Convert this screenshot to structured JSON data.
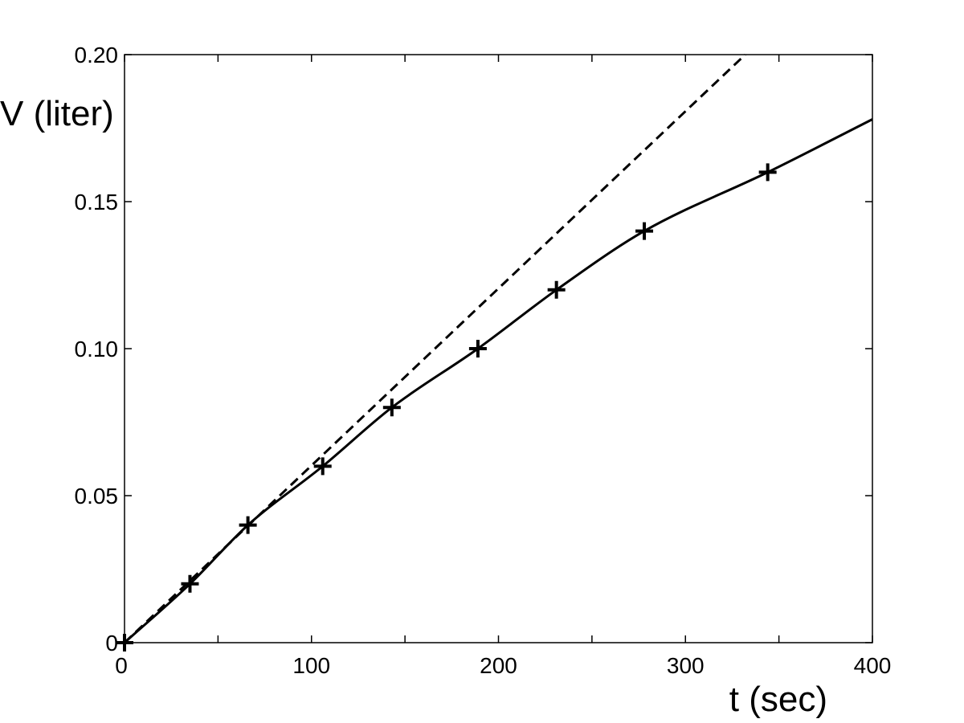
{
  "chart_data": {
    "type": "line",
    "title": "",
    "xlabel": "t (sec)",
    "ylabel": "V (liter)",
    "xlim": [
      0,
      400
    ],
    "ylim": [
      0,
      0.2
    ],
    "x_ticks": [
      0,
      100,
      200,
      300,
      400
    ],
    "x_tick_labels": [
      "0",
      "100",
      "200",
      "300",
      "400"
    ],
    "x_minor_ticks": [
      50,
      150,
      250,
      350
    ],
    "y_ticks": [
      0,
      0.05,
      0.1,
      0.15,
      0.2
    ],
    "y_tick_labels": [
      "0",
      "0.05",
      "0.10",
      "0.15",
      "0.20"
    ],
    "grid": false,
    "legend": "none",
    "series": [
      {
        "style": "markers-plus",
        "x": [
          0,
          35,
          66,
          106,
          143,
          189,
          231,
          278,
          344
        ],
        "y": [
          0,
          0.02,
          0.04,
          0.06,
          0.08,
          0.1,
          0.12,
          0.14,
          0.16
        ]
      },
      {
        "style": "solid-line",
        "x": [
          0,
          35,
          66,
          106,
          143,
          189,
          231,
          278,
          344,
          400
        ],
        "y": [
          0,
          0.02,
          0.04,
          0.06,
          0.08,
          0.1,
          0.12,
          0.14,
          0.16,
          0.178
        ]
      },
      {
        "style": "dashed-line",
        "x": [
          0,
          332
        ],
        "y": [
          0,
          0.2
        ]
      }
    ],
    "colors": {
      "axis": "#000000",
      "lines": "#000000"
    }
  }
}
